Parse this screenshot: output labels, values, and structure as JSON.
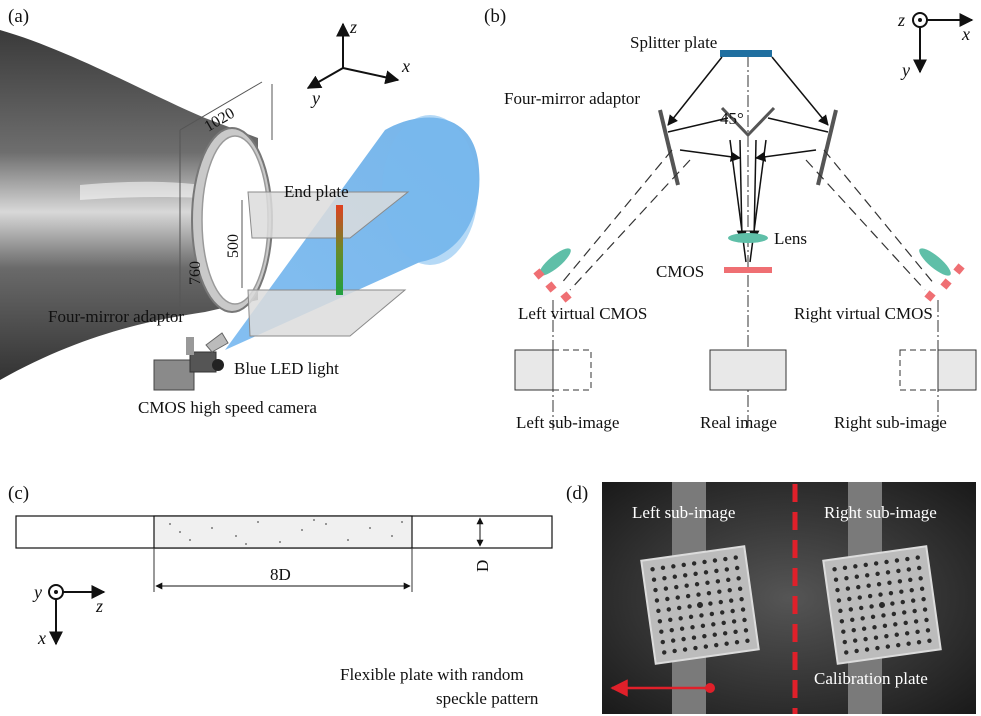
{
  "panels": {
    "a": "(a)",
    "b": "(b)",
    "c": "(c)",
    "d": "(d)"
  },
  "panel_a": {
    "axes": {
      "z": "z",
      "x": "x",
      "y": "y"
    },
    "dims": {
      "d1020": "1020",
      "d760": "760",
      "d500": "500"
    },
    "end_plate": "End plate",
    "four_mirror": "Four-mirror adaptor",
    "blue_led": "Blue LED light",
    "camera": "CMOS high speed camera"
  },
  "panel_b": {
    "axes": {
      "z": "z",
      "x": "x",
      "y": "y"
    },
    "splitter": "Splitter plate",
    "four_mirror": "Four-mirror adaptor",
    "angle": "45°",
    "lens": "Lens",
    "cmos": "CMOS",
    "left_virtual": "Left virtual CMOS",
    "right_virtual": "Right virtual CMOS",
    "left_sub": "Left sub-image",
    "real": "Real image",
    "right_sub": "Right sub-image"
  },
  "panel_c": {
    "length": "8D",
    "width": "D",
    "axes": {
      "y": "y",
      "z": "z",
      "x": "x"
    }
  },
  "panel_d": {
    "left_sub": "Left sub-image",
    "right_sub": "Right sub-image",
    "calibration": "Calibration plate",
    "flex_line1": "Flexible plate with random",
    "flex_line2": "speckle pattern"
  },
  "colors": {
    "accent_red": "#e0202a",
    "blue_light": "#5aa8e8",
    "lens_green": "#5fbfa8",
    "splitter_blue": "#1f6fa0",
    "cmos_red": "#ef6f73"
  }
}
